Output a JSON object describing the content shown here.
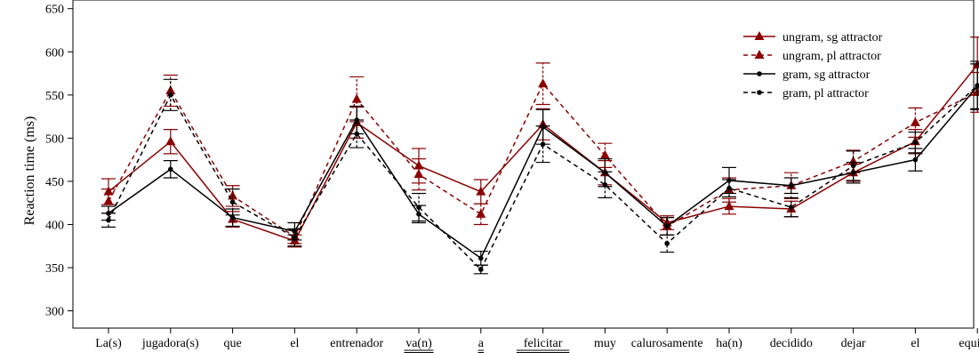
{
  "chart_data": {
    "type": "line",
    "ylabel": "Reaction time (ms)",
    "xlabel": "",
    "ylim": [
      280,
      660
    ],
    "yticks": [
      300,
      350,
      400,
      450,
      500,
      550,
      600,
      650
    ],
    "grid": false,
    "legend_position": "top-right",
    "categories": [
      "La(s)",
      "jugadora(s)",
      "que",
      "el",
      "entrenador",
      "va(n)",
      "a",
      "felicitar",
      "muy",
      "calurosamente",
      "ha(n)",
      "decidido",
      "dejar",
      "el",
      "equipo."
    ],
    "underlined_categories": [
      "va(n)",
      "a",
      "felicitar"
    ],
    "series": [
      {
        "name": "ungram, sg attractor",
        "color": "#8b0000",
        "dash": "solid",
        "marker": "triangle",
        "values": [
          438,
          496,
          406,
          381,
          518,
          468,
          438,
          516,
          460,
          402,
          421,
          418,
          460,
          496,
          585
        ],
        "errors": [
          15,
          14,
          9,
          7,
          18,
          20,
          14,
          18,
          14,
          8,
          9,
          9,
          10,
          14,
          32
        ]
      },
      {
        "name": "ungram, pl attractor",
        "color": "#8b0000",
        "dash": "dashed",
        "marker": "triangle",
        "values": [
          427,
          555,
          433,
          386,
          545,
          458,
          412,
          563,
          480,
          398,
          440,
          445,
          473,
          518,
          553
        ],
        "errors": [
          14,
          18,
          12,
          8,
          26,
          18,
          12,
          24,
          14,
          10,
          14,
          15,
          13,
          17,
          23
        ]
      },
      {
        "name": "gram, sg attractor",
        "color": "#000000",
        "dash": "solid",
        "marker": "dot",
        "values": [
          413,
          464,
          408,
          392,
          521,
          412,
          361,
          513,
          460,
          398,
          451,
          445,
          460,
          475,
          560
        ],
        "errors": [
          8,
          10,
          10,
          10,
          16,
          10,
          8,
          20,
          16,
          10,
          15,
          9,
          12,
          13,
          26
        ]
      },
      {
        "name": "gram, pl attractor",
        "color": "#000000",
        "dash": "dashed",
        "marker": "dot",
        "values": [
          405,
          550,
          426,
          385,
          505,
          420,
          348,
          493,
          446,
          378,
          442,
          420,
          468,
          495,
          561
        ],
        "errors": [
          8,
          18,
          15,
          10,
          16,
          16,
          5,
          21,
          15,
          10,
          10,
          11,
          17,
          12,
          28
        ]
      }
    ]
  }
}
